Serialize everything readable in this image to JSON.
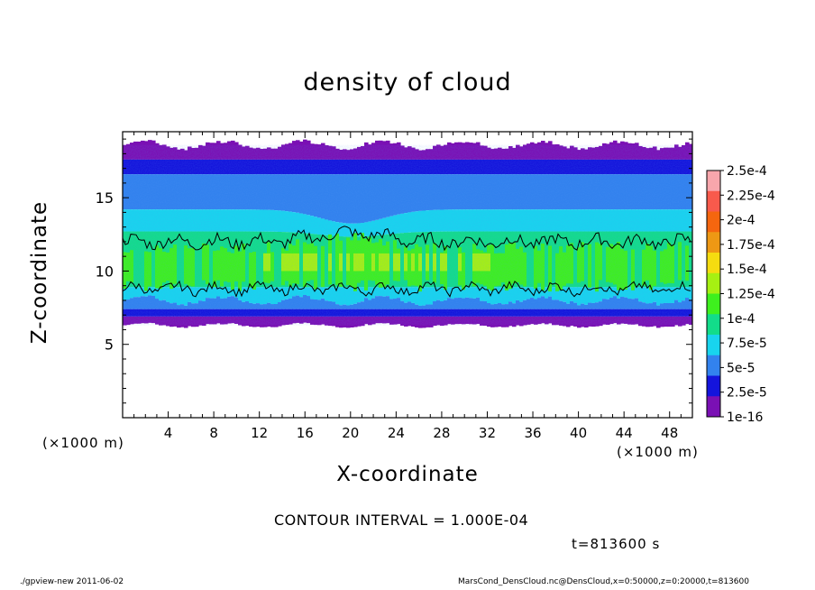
{
  "chart_data": {
    "type": "heatmap",
    "title": "density of cloud",
    "xlabel": "X-coordinate",
    "ylabel": "Z-coordinate",
    "x_unit": "(×1000 m)",
    "y_unit": "(×1000 m)",
    "xlim": [
      0,
      50
    ],
    "ylim": [
      0,
      19.5
    ],
    "x_ticks": [
      4,
      8,
      12,
      16,
      20,
      24,
      28,
      32,
      36,
      40,
      44,
      48
    ],
    "y_ticks": [
      5,
      10,
      15
    ],
    "colorbar": {
      "labels": [
        "2.5e-4",
        "2.25e-4",
        "2e-4",
        "1.75e-4",
        "1.5e-4",
        "1.25e-4",
        "1e-4",
        "7.5e-5",
        "5e-5",
        "2.5e-5",
        "1e-16"
      ],
      "colors": [
        "#f8a6ac",
        "#f85a4c",
        "#f5660f",
        "#ee9814",
        "#f5dc10",
        "#a6f012",
        "#3ef01e",
        "#12dc8a",
        "#18d4ee",
        "#3282ee",
        "#1414dc",
        "#7a10b4"
      ]
    },
    "cloud_layer": {
      "bottom_z": 6.3,
      "top_z": 18.6,
      "peak_band_z": [
        8.5,
        12.5
      ],
      "peak_value": 0.00015,
      "peak_x_range": [
        16,
        28
      ]
    },
    "contour_interval": "CONTOUR INTERVAL = 1.000E-04",
    "time": "t=813600 s"
  },
  "footer": {
    "left": "./gpview-new  2011-06-02",
    "right": "MarsCond_DensCloud.nc@DensCloud,x=0:50000,z=0:20000,t=813600"
  }
}
